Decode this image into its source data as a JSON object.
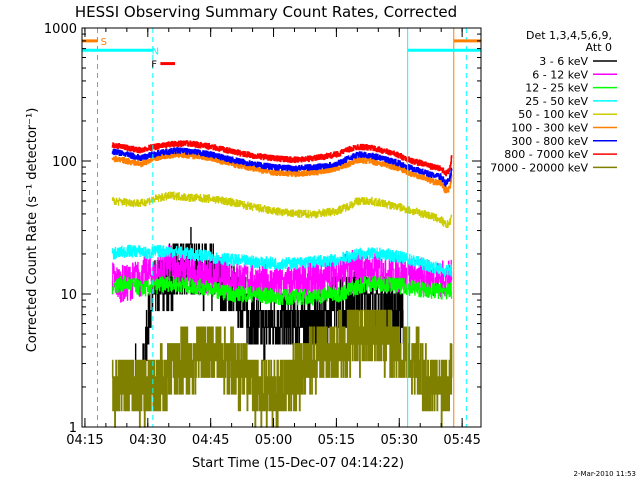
{
  "chart_data": {
    "type": "line",
    "title": "HESSI Observing Summary Count Rates, Corrected",
    "xlabel": "Start Time (15-Dec-07 04:14:22)",
    "ylabel": "Corrected Count Rate (s⁻¹ detector⁻¹)",
    "y_scale": "log",
    "xlim": [
      14.3,
      109.5
    ],
    "ylim": [
      1,
      1000
    ],
    "x_unit": "minutes after 04:00 UT",
    "x_ticks": [
      {
        "x": 15,
        "label": "04:15"
      },
      {
        "x": 30,
        "label": "04:30"
      },
      {
        "x": 45,
        "label": "04:45"
      },
      {
        "x": 60,
        "label": "05:00"
      },
      {
        "x": 75,
        "label": "05:15"
      },
      {
        "x": 90,
        "label": "05:30"
      },
      {
        "x": 105,
        "label": "05:45"
      }
    ],
    "y_ticks": [
      {
        "y": 1,
        "label": "1"
      },
      {
        "y": 10,
        "label": "10"
      },
      {
        "y": 100,
        "label": "100"
      },
      {
        "y": 1000,
        "label": "1000"
      }
    ],
    "legend": {
      "placement": "right",
      "header": [
        "Det 1,3,4,5,6,9,",
        "Att 0"
      ]
    },
    "series": [
      {
        "name": "3 - 6 keV",
        "color": "#000000",
        "x": [
          27.0,
          28.5,
          29.0,
          30.0,
          31.5,
          33.0,
          34.0,
          36.0,
          38.0,
          40.0,
          43.0,
          46.0,
          48.0,
          50.0,
          52.0,
          54.0,
          56.0,
          58.0,
          60.0,
          62.0,
          64.0,
          66.0,
          68.0,
          70.0,
          72.0,
          74.0,
          76.0,
          78.0,
          80.0,
          82.0,
          84.0,
          86.0,
          88.0,
          90.0,
          91.0
        ],
        "y": [
          2.5,
          2.3,
          2.8,
          6.0,
          10.0,
          13.0,
          12.0,
          14.0,
          15.0,
          18.0,
          14.0,
          13.0,
          12.0,
          11.0,
          9.0,
          7.0,
          6.0,
          5.5,
          6.0,
          6.0,
          6.0,
          6.5,
          6.0,
          6.0,
          6.5,
          8.0,
          9.0,
          10.0,
          11.0,
          10.0,
          9.0,
          8.5,
          8.0,
          8.0,
          7.0
        ]
      },
      {
        "name": "6 - 12 keV",
        "color": "#ff00ff",
        "x": [
          21.5,
          23.0,
          25.0,
          27.0,
          28.5,
          29.5,
          30.5,
          31.5,
          33.0,
          35.0,
          37.0,
          40.0,
          43.0,
          46.0,
          50.0,
          55.0,
          60.0,
          65.0,
          68.0,
          70.0,
          72.0,
          74.0,
          76.0,
          78.0,
          80.0,
          83.0,
          86.0,
          89.0,
          91.0,
          94.0,
          97.0,
          99.0,
          101.0,
          102.5
        ],
        "y": [
          13.0,
          12.0,
          12.0,
          13.0,
          13.0,
          15.0,
          14.0,
          13.5,
          15.0,
          17.0,
          16.0,
          14.5,
          14.0,
          14.0,
          13.5,
          12.5,
          12.0,
          12.0,
          12.5,
          12.5,
          13.0,
          14.0,
          15.0,
          15.5,
          15.5,
          15.0,
          14.5,
          14.0,
          14.0,
          13.5,
          13.0,
          13.0,
          13.0,
          13.0
        ]
      },
      {
        "name": "12 - 25 keV",
        "color": "#00ff00",
        "x": [
          21.5,
          25.0,
          28.5,
          30.0,
          32.0,
          35.0,
          40.0,
          45.0,
          50.0,
          55.0,
          60.0,
          65.0,
          68.0,
          70.0,
          73.0,
          76.0,
          79.0,
          82.0,
          86.0,
          90.0,
          94.0,
          98.0,
          101.0,
          102.5
        ],
        "y": [
          11.5,
          12.0,
          11.0,
          11.0,
          11.5,
          12.0,
          11.5,
          11.0,
          10.0,
          10.0,
          9.5,
          9.5,
          9.5,
          9.5,
          10.0,
          10.0,
          11.0,
          12.0,
          12.0,
          11.5,
          11.0,
          10.5,
          10.5,
          10.5
        ]
      },
      {
        "name": "25 - 50 keV",
        "color": "#00ffff",
        "x": [
          21.5,
          25.0,
          28.5,
          30.0,
          32.0,
          36.0,
          40.0,
          45.0,
          50.0,
          55.0,
          60.0,
          65.0,
          70.0,
          75.0,
          78.0,
          80.0,
          83.0,
          86.0,
          90.0,
          94.0,
          98.0,
          101.0,
          102.5
        ],
        "y": [
          20.0,
          21.0,
          21.0,
          20.0,
          21.0,
          21.0,
          20.0,
          19.0,
          18.0,
          17.5,
          17.0,
          17.0,
          17.5,
          18.0,
          19.0,
          20.0,
          20.0,
          20.0,
          19.0,
          17.5,
          16.0,
          15.0,
          15.0
        ]
      },
      {
        "name": "50 - 100 keV",
        "color": "#cccc00",
        "x": [
          21.5,
          25.0,
          28.5,
          30.0,
          33.0,
          36.0,
          40.0,
          45.0,
          50.0,
          55.0,
          60.0,
          65.0,
          70.0,
          75.0,
          78.0,
          80.0,
          83.0,
          86.0,
          90.0,
          93.0,
          96.0,
          98.0,
          100.0,
          101.0,
          102.0,
          102.5
        ],
        "y": [
          50.0,
          49.0,
          48.0,
          50.0,
          53.0,
          55.0,
          53.0,
          52.0,
          49.0,
          45.0,
          42.0,
          40.0,
          40.0,
          42.0,
          46.0,
          50.0,
          50.0,
          48.0,
          45.0,
          42.0,
          40.0,
          38.0,
          36.0,
          33.0,
          34.0,
          38.0
        ]
      },
      {
        "name": "100 - 300 keV",
        "color": "#ff8000",
        "x": [
          21.5,
          25.0,
          28.5,
          30.0,
          33.0,
          37.0,
          40.0,
          45.0,
          50.0,
          55.0,
          60.0,
          65.0,
          70.0,
          75.0,
          78.0,
          80.0,
          83.0,
          86.0,
          90.0,
          93.0,
          96.0,
          98.0,
          100.0,
          101.0,
          102.0,
          102.5
        ],
        "y": [
          105.0,
          100.0,
          95.0,
          100.0,
          108.0,
          112.0,
          110.0,
          105.0,
          95.0,
          88.0,
          82.0,
          80.0,
          82.0,
          88.0,
          95.0,
          102.0,
          100.0,
          95.0,
          88.0,
          80.0,
          75.0,
          70.0,
          68.0,
          60.0,
          62.0,
          78.0
        ]
      },
      {
        "name": "300 - 800 keV",
        "color": "#0000ff",
        "x": [
          21.5,
          25.0,
          28.5,
          30.0,
          33.0,
          37.0,
          40.0,
          45.0,
          50.0,
          55.0,
          60.0,
          65.0,
          70.0,
          75.0,
          78.0,
          80.0,
          83.0,
          86.0,
          90.0,
          93.0,
          96.0,
          98.0,
          100.0,
          101.0,
          102.0,
          102.5
        ],
        "y": [
          118.0,
          112.0,
          105.0,
          110.0,
          115.0,
          120.0,
          118.0,
          112.0,
          102.0,
          95.0,
          90.0,
          88.0,
          90.0,
          95.0,
          105.0,
          112.0,
          110.0,
          105.0,
          96.0,
          88.0,
          82.0,
          78.0,
          76.0,
          68.0,
          72.0,
          90.0
        ]
      },
      {
        "name": "800 - 7000 keV",
        "color": "#ff0000",
        "x": [
          21.5,
          25.0,
          28.5,
          30.0,
          33.0,
          37.0,
          40.0,
          45.0,
          50.0,
          55.0,
          60.0,
          65.0,
          70.0,
          75.0,
          78.0,
          80.0,
          83.0,
          86.0,
          90.0,
          93.0,
          96.0,
          98.0,
          100.0,
          101.0,
          102.0,
          102.5
        ],
        "y": [
          132.0,
          125.0,
          120.0,
          125.0,
          130.0,
          135.0,
          135.0,
          128.0,
          118.0,
          110.0,
          105.0,
          102.0,
          105.0,
          112.0,
          122.0,
          128.0,
          126.0,
          120.0,
          110.0,
          100.0,
          95.0,
          90.0,
          88.0,
          80.0,
          85.0,
          110.0
        ]
      },
      {
        "name": "7000 - 20000 keV",
        "color": "#808000",
        "x": [
          21.5,
          25.0,
          28.5,
          31.0,
          34.0,
          38.0,
          42.0,
          46.0,
          50.0,
          55.0,
          60.0,
          65.0,
          70.0,
          75.0,
          78.0,
          82.0,
          86.0,
          90.0,
          94.0,
          97.0,
          100.0,
          102.0,
          102.5
        ],
        "y": [
          2.0,
          2.0,
          2.0,
          2.0,
          2.5,
          3.0,
          3.5,
          4.0,
          3.0,
          2.0,
          1.8,
          2.5,
          3.5,
          4.0,
          4.5,
          5.0,
          4.5,
          4.0,
          3.0,
          2.0,
          2.0,
          2.5,
          3.0
        ]
      }
    ],
    "flags": [
      {
        "label": "S",
        "color": "#ff8000",
        "x_start": 14.3,
        "x_end": 18.0,
        "y": 800,
        "label_x": 19.5
      },
      {
        "label": "S",
        "color": "#ff8000",
        "x_start": 103.0,
        "x_end": 109.5,
        "y": 800,
        "label_x": null
      },
      {
        "label": "N",
        "color": "#00ffff",
        "x_start": 14.3,
        "x_end": 31.2,
        "y": 680,
        "label_x": 31.8
      },
      {
        "label": "N",
        "color": "#00ffff",
        "x_start": 92.0,
        "x_end": 109.5,
        "y": 680,
        "label_x": null
      },
      {
        "label": "F",
        "color": "#ff0000",
        "x_start": 33.0,
        "x_end": 36.5,
        "y": 540,
        "label_x": 31.5
      }
    ],
    "markers": [
      {
        "x": 18.0,
        "color": "#ff8000",
        "style": "dashed"
      },
      {
        "x": 31.2,
        "color": "#00ffff",
        "style": "dashed"
      },
      {
        "x": 92.0,
        "color": "#00ffff",
        "style": "solid"
      },
      {
        "x": 103.0,
        "color": "#ff8000",
        "style": "solid"
      },
      {
        "x": 106.0,
        "color": "#00ffff",
        "style": "dashed"
      }
    ]
  },
  "footer": {
    "timestamp": "2-Mar-2010 11:53"
  }
}
